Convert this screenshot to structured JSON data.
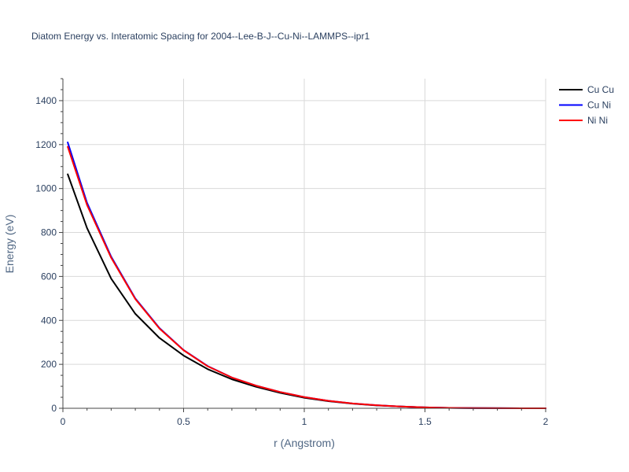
{
  "chart_data": {
    "type": "line",
    "title": "Diatom Energy vs. Interatomic Spacing for 2004--Lee-B-J--Cu-Ni--LAMMPS--ipr1",
    "xlabel": "r (Angstrom)",
    "ylabel": "Energy (eV)",
    "xlim": [
      0,
      2
    ],
    "ylim": [
      0,
      1500
    ],
    "x_ticks": [
      0,
      0.5,
      1,
      1.5,
      2
    ],
    "x_tick_labels": [
      "0",
      "0.5",
      "1",
      "1.5",
      "2"
    ],
    "y_ticks": [
      0,
      200,
      400,
      600,
      800,
      1000,
      1200,
      1400
    ],
    "y_tick_labels": [
      "0",
      "200",
      "400",
      "600",
      "800",
      "1000",
      "1200",
      "1400"
    ],
    "grid": true,
    "legend_position": "top-right",
    "series": [
      {
        "name": "Cu Cu",
        "color": "#000000",
        "x": [
          0.02,
          0.1,
          0.2,
          0.3,
          0.4,
          0.5,
          0.6,
          0.7,
          0.8,
          0.9,
          1.0,
          1.1,
          1.2,
          1.3,
          1.4,
          1.5,
          1.6,
          1.7,
          1.8,
          1.9,
          2.0
        ],
        "y": [
          1065,
          820,
          590,
          430,
          320,
          240,
          178,
          132,
          98,
          70,
          48,
          32,
          21,
          13,
          8,
          4,
          2,
          1,
          0.5,
          0.2,
          0
        ]
      },
      {
        "name": "Cu Ni",
        "color": "#0000ff",
        "x": [
          0.02,
          0.1,
          0.2,
          0.3,
          0.4,
          0.5,
          0.6,
          0.7,
          0.8,
          0.9,
          1.0,
          1.1,
          1.2,
          1.3,
          1.4,
          1.5,
          1.6,
          1.7,
          1.8,
          1.9,
          2.0
        ],
        "y": [
          1210,
          935,
          690,
          500,
          365,
          265,
          192,
          140,
          103,
          74,
          51,
          34,
          22,
          14,
          8,
          4,
          2,
          1,
          0.5,
          0.2,
          0
        ]
      },
      {
        "name": "Ni Ni",
        "color": "#ff0000",
        "x": [
          0.02,
          0.1,
          0.2,
          0.3,
          0.4,
          0.5,
          0.6,
          0.7,
          0.8,
          0.9,
          1.0,
          1.1,
          1.2,
          1.3,
          1.4,
          1.5,
          1.6,
          1.7,
          1.8,
          1.9,
          2.0
        ],
        "y": [
          1190,
          925,
          685,
          497,
          363,
          264,
          191,
          140,
          103,
          74,
          51,
          34,
          22,
          14,
          8,
          4,
          2,
          1,
          0.5,
          0.2,
          0
        ]
      }
    ]
  }
}
